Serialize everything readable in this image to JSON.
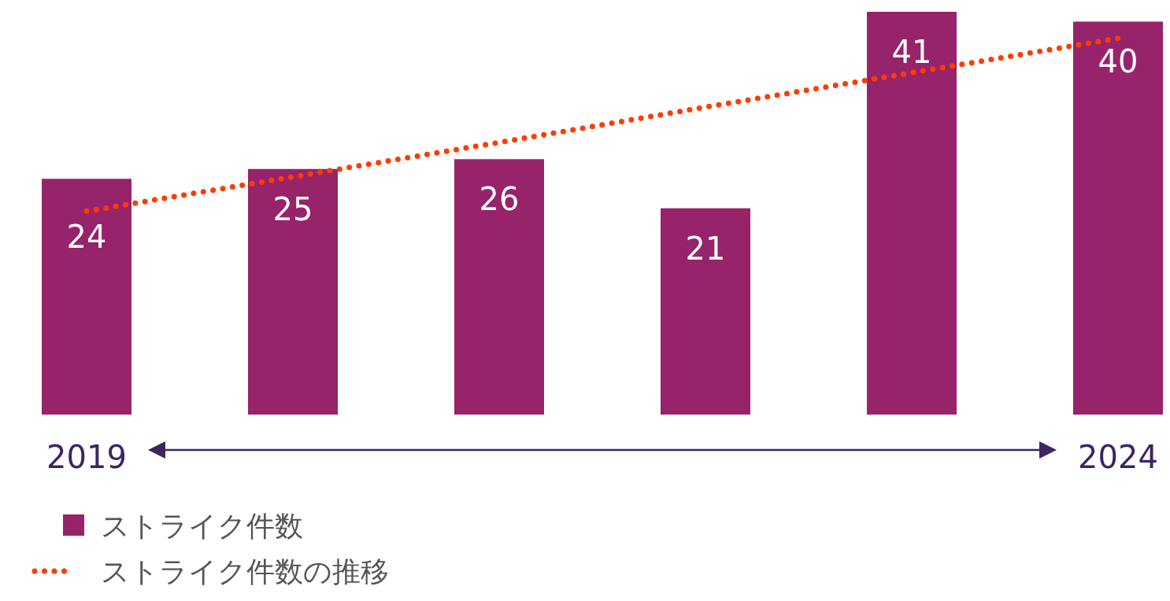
{
  "chart_data": {
    "type": "bar",
    "categories": [
      "2019",
      null,
      null,
      null,
      null,
      "2024"
    ],
    "series": [
      {
        "name": "ストライク件数",
        "type": "bar",
        "color": "#97236b",
        "values": [
          24,
          25,
          26,
          21,
          41,
          40
        ],
        "value_labels": [
          "24",
          "25",
          "26",
          "21",
          "41",
          "40"
        ]
      },
      {
        "name": "ストライク件数の推移",
        "type": "line",
        "color": "#ff3c00",
        "line_style": "dotted",
        "marker": "none",
        "values": [
          20.7,
          24.2,
          27.7,
          31.3,
          34.8,
          38.3
        ]
      }
    ],
    "legend": "bottom left"
  }
}
